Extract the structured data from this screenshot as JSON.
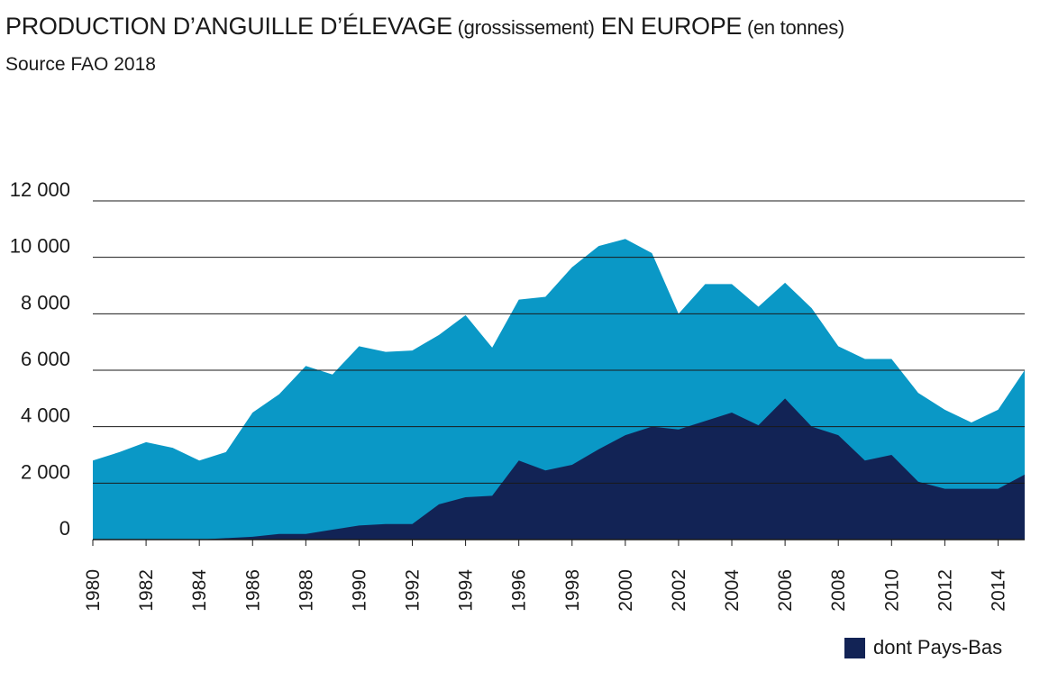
{
  "colors": {
    "europe": "#0a98c6",
    "pays_bas": "#122355",
    "grid": "#1a1a1a"
  },
  "chart_data": {
    "type": "area",
    "title_parts": [
      {
        "text": "PRODUCTION D’ANGUILLE D’ÉLEVAGE",
        "small": false
      },
      {
        "text": " (grossissement)",
        "small": true
      },
      {
        "text": " EN EUROPE",
        "small": false
      },
      {
        "text": " (en tonnes)",
        "small": true
      }
    ],
    "subtitle": "Source FAO 2018",
    "ylim": [
      0,
      12000
    ],
    "yticks": [
      0,
      2000,
      4000,
      6000,
      8000,
      10000,
      12000
    ],
    "ytick_labels": [
      "0",
      "2 000",
      "4 000",
      "6 000",
      "8 000",
      "10 000",
      "12 000"
    ],
    "xlim": [
      1980,
      2015
    ],
    "xtick_years": [
      1980,
      1982,
      1984,
      1986,
      1988,
      1990,
      1992,
      1994,
      1996,
      1998,
      2000,
      2002,
      2004,
      2006,
      2008,
      2010,
      2012,
      2014
    ],
    "xtick_labels": [
      "1980",
      "1982",
      "1984",
      "1986",
      "1988",
      "1990",
      "1992",
      "1994",
      "1996",
      "1998",
      "2000",
      "2002",
      "2004",
      "2006",
      "2008",
      "2010",
      "2012",
      "2014"
    ],
    "grid": true,
    "legend_position": "bottom-right",
    "x": [
      1980,
      1981,
      1982,
      1983,
      1984,
      1985,
      1986,
      1987,
      1988,
      1989,
      1990,
      1991,
      1992,
      1993,
      1994,
      1995,
      1996,
      1997,
      1998,
      1999,
      2000,
      2001,
      2002,
      2003,
      2004,
      2005,
      2006,
      2007,
      2008,
      2009,
      2010,
      2011,
      2012,
      2013,
      2014,
      2015
    ],
    "series": [
      {
        "key": "europe",
        "values": [
          2800,
          3100,
          3450,
          3250,
          2800,
          3100,
          4500,
          5150,
          6150,
          5850,
          6850,
          6650,
          6700,
          7250,
          7950,
          6800,
          8500,
          8600,
          9650,
          10400,
          10650,
          10150,
          8000,
          9050,
          9050,
          8250,
          9100,
          8200,
          6850,
          6400,
          6400,
          5200,
          4600,
          4150,
          4600,
          6000
        ]
      },
      {
        "key": "pays_bas",
        "name": "dont Pays-Bas",
        "values": [
          0,
          0,
          0,
          0,
          0,
          50,
          100,
          200,
          200,
          350,
          500,
          550,
          550,
          1250,
          1500,
          1550,
          2800,
          2450,
          2650,
          3200,
          3700,
          4000,
          3900,
          4200,
          4500,
          4050,
          5000,
          4000,
          3700,
          2800,
          3000,
          2050,
          1800,
          1800,
          1800,
          2300
        ]
      }
    ]
  }
}
